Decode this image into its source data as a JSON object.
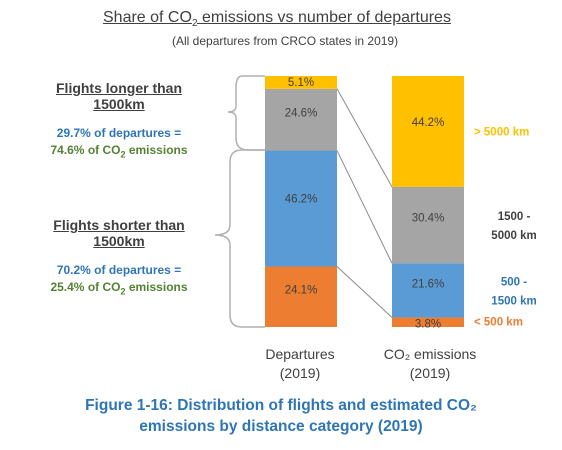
{
  "chart_data": {
    "type": "bar",
    "stacked": true,
    "title_main": "Share of CO",
    "title_sub2": "2",
    "title_rest": " emissions vs number of departures",
    "subtitle": "(All departures from CRCO states in 2019)",
    "categories": [
      {
        "l1": "Departures",
        "l2": "(2019)"
      },
      {
        "l1": "CO₂ emissions",
        "l2": "(2019)"
      }
    ],
    "series": [
      {
        "name": "< 500 km",
        "name_l1": "< 500 km",
        "name_l2": "",
        "color": "#ed7d31",
        "label_color": "#ed7d31",
        "values": [
          24.1,
          3.8
        ],
        "labels": [
          "24.1%",
          "3.8%"
        ]
      },
      {
        "name": "500 - 1500 km",
        "name_l1": "500 -",
        "name_l2": "1500 km",
        "color": "#5b9bd5",
        "label_color": "#2e75b6",
        "values": [
          46.2,
          21.6
        ],
        "labels": [
          "46.2%",
          "21.6%"
        ]
      },
      {
        "name": "1500 - 5000 km",
        "name_l1": "1500 -",
        "name_l2": "5000 km",
        "color": "#a5a5a5",
        "label_color": "#404040",
        "values": [
          24.6,
          30.4
        ],
        "labels": [
          "24.6%",
          "30.4%"
        ]
      },
      {
        "name": "> 5000 km",
        "name_l1": "> 5000 km",
        "name_l2": "",
        "color": "#ffc000",
        "label_color": "#ffc000",
        "values": [
          5.1,
          44.2
        ],
        "labels": [
          "5.1%",
          "44.2%"
        ]
      }
    ],
    "ylim": [
      0,
      100
    ]
  },
  "annotations": {
    "longer_heading_l1": "Flights longer than",
    "longer_heading_l2": "1500km",
    "longer_dep_pct": "29.7%",
    "longer_dep_text": " of departures =",
    "longer_co2_pct": "74.6%",
    "longer_co2_text": " of CO",
    "longer_co2_sub": "2",
    "longer_co2_tail": " emissions",
    "shorter_heading_l1": "Flights shorter than",
    "shorter_heading_l2": "1500km",
    "shorter_dep_pct": "70.2%",
    "shorter_dep_text": " of departures =",
    "shorter_co2_pct": "25.4%",
    "shorter_co2_text": " of CO",
    "shorter_co2_sub": "2",
    "shorter_co2_tail": " emissions"
  },
  "caption": {
    "line1": "Figure 1-16: Distribution of flights and estimated CO₂",
    "line2": "emissions by distance category (2019)"
  }
}
